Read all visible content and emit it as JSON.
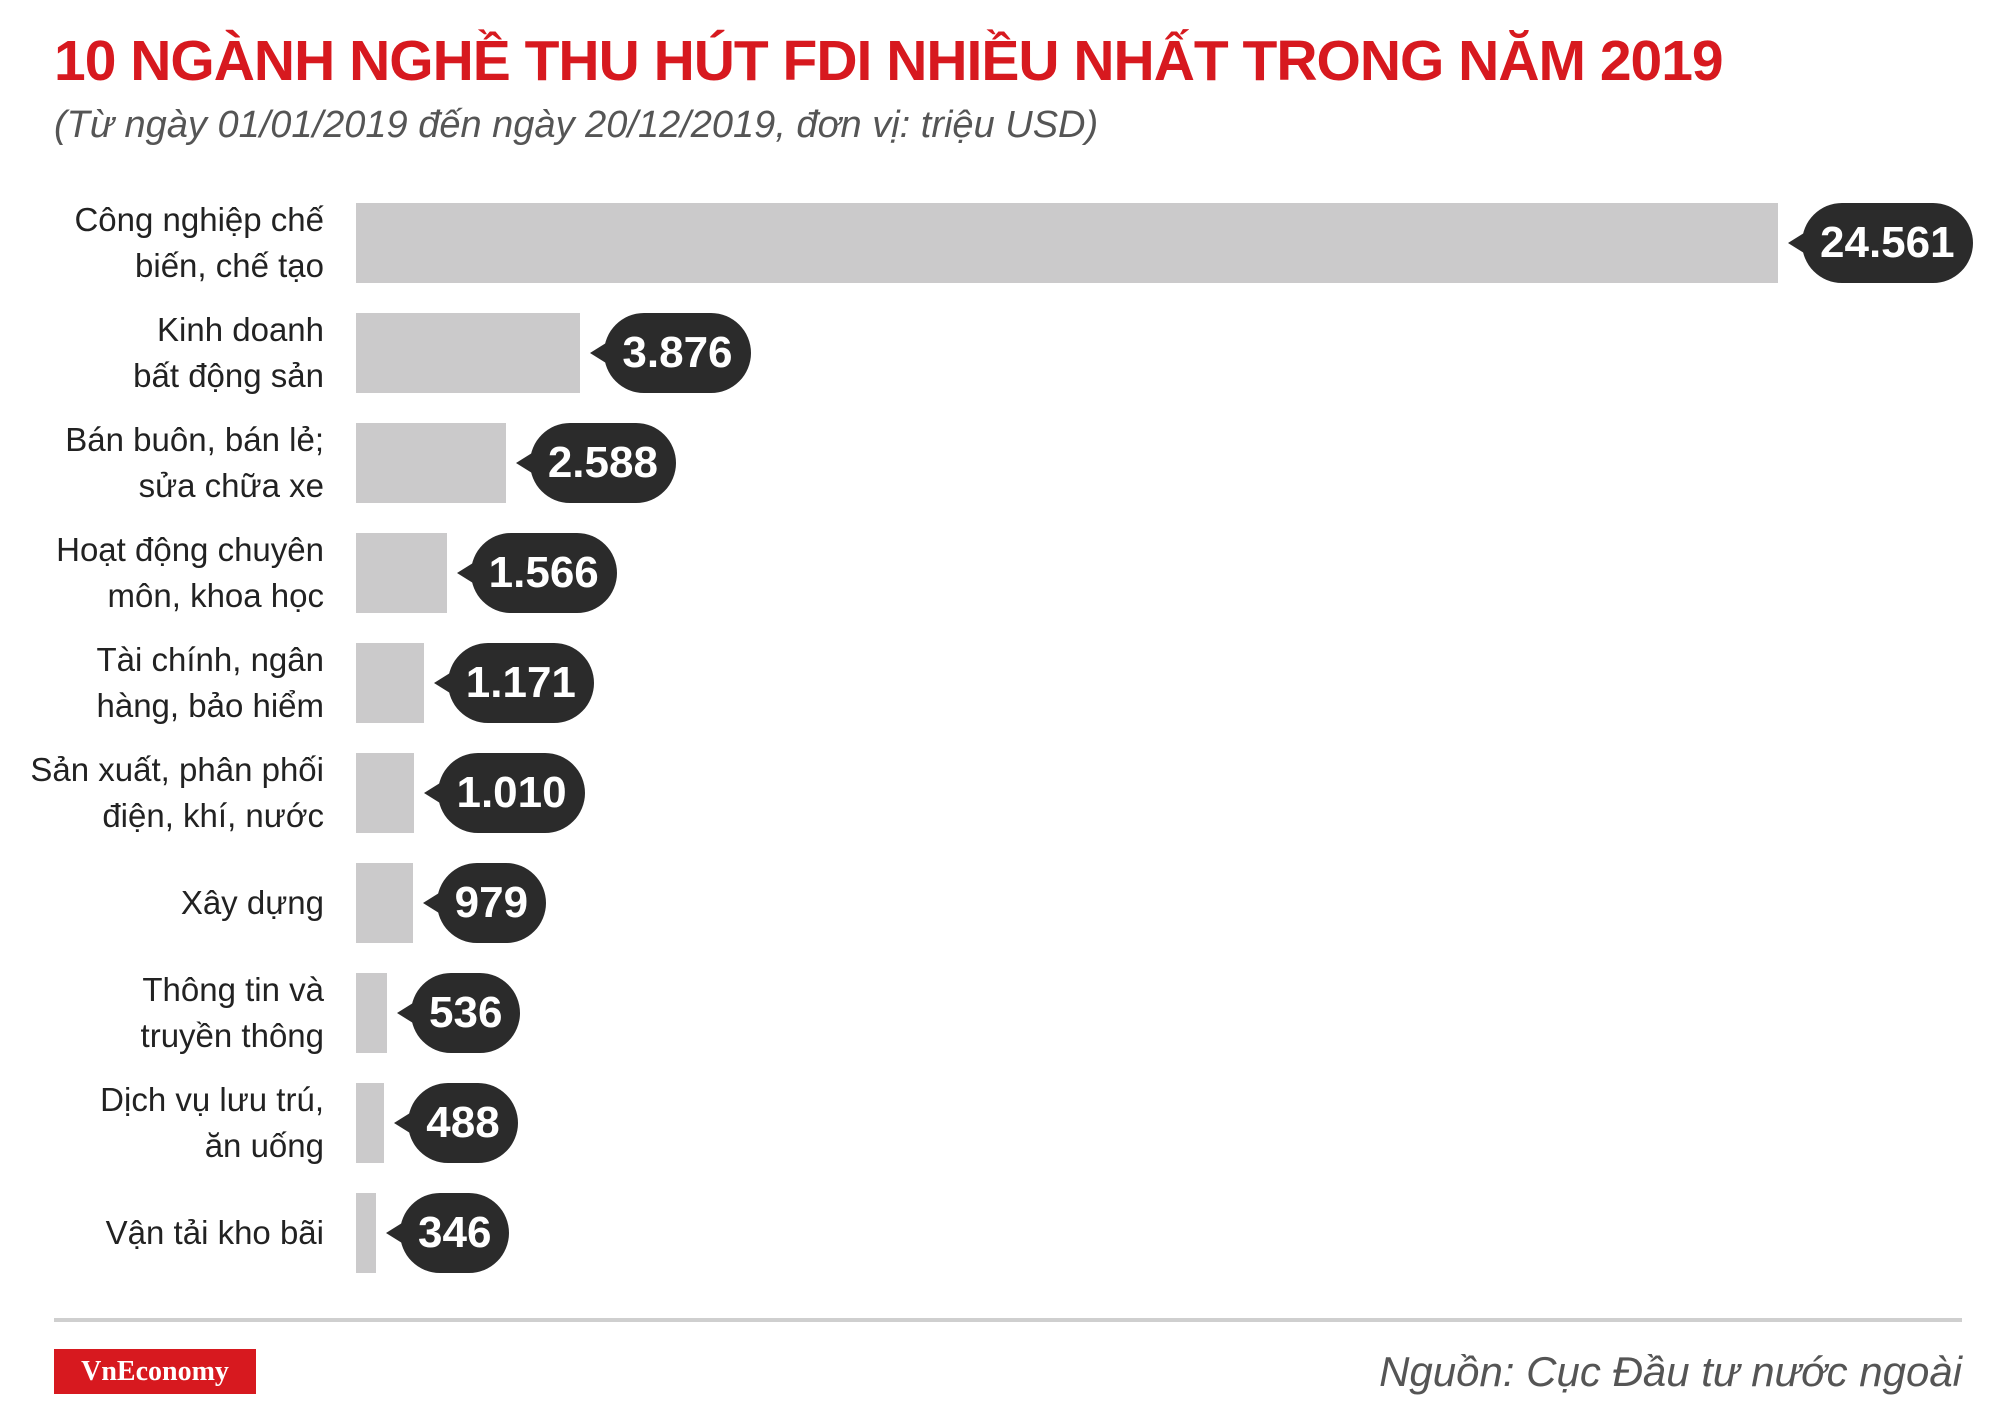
{
  "chart_data": {
    "type": "bar",
    "orientation": "horizontal",
    "title": "10 NGÀNH NGHỀ THU HÚT FDI NHIỀU NHẤT TRONG NĂM 2019",
    "subtitle": "(Từ ngày 01/01/2019 đến ngày 20/12/2019, đơn vị: triệu USD)",
    "categories": [
      "Công nghiệp chế\nbiến, chế tạo",
      "Kinh doanh\nbất động sản",
      "Bán buôn, bán lẻ;\nsửa chữa xe",
      "Hoạt động chuyên\nmôn, khoa học",
      "Tài chính, ngân\nhàng, bảo hiểm",
      "Sản xuất, phân phối\nđiện, khí, nước",
      "Xây dựng",
      "Thông tin và\ntruyền thông",
      "Dịch vụ lưu trú,\năn uống",
      "Vận tải kho bãi"
    ],
    "values": [
      24561,
      3876,
      2588,
      1566,
      1171,
      1010,
      979,
      536,
      488,
      346
    ],
    "value_labels": [
      "24.561",
      "3.876",
      "2.588",
      "1.566",
      "1.171",
      "1.010",
      "979",
      "536",
      "488",
      "346"
    ],
    "color": "#cbcacb",
    "brand": "VnEconomy",
    "source": "Nguồn: Cục Đầu tư nước ngoài"
  }
}
